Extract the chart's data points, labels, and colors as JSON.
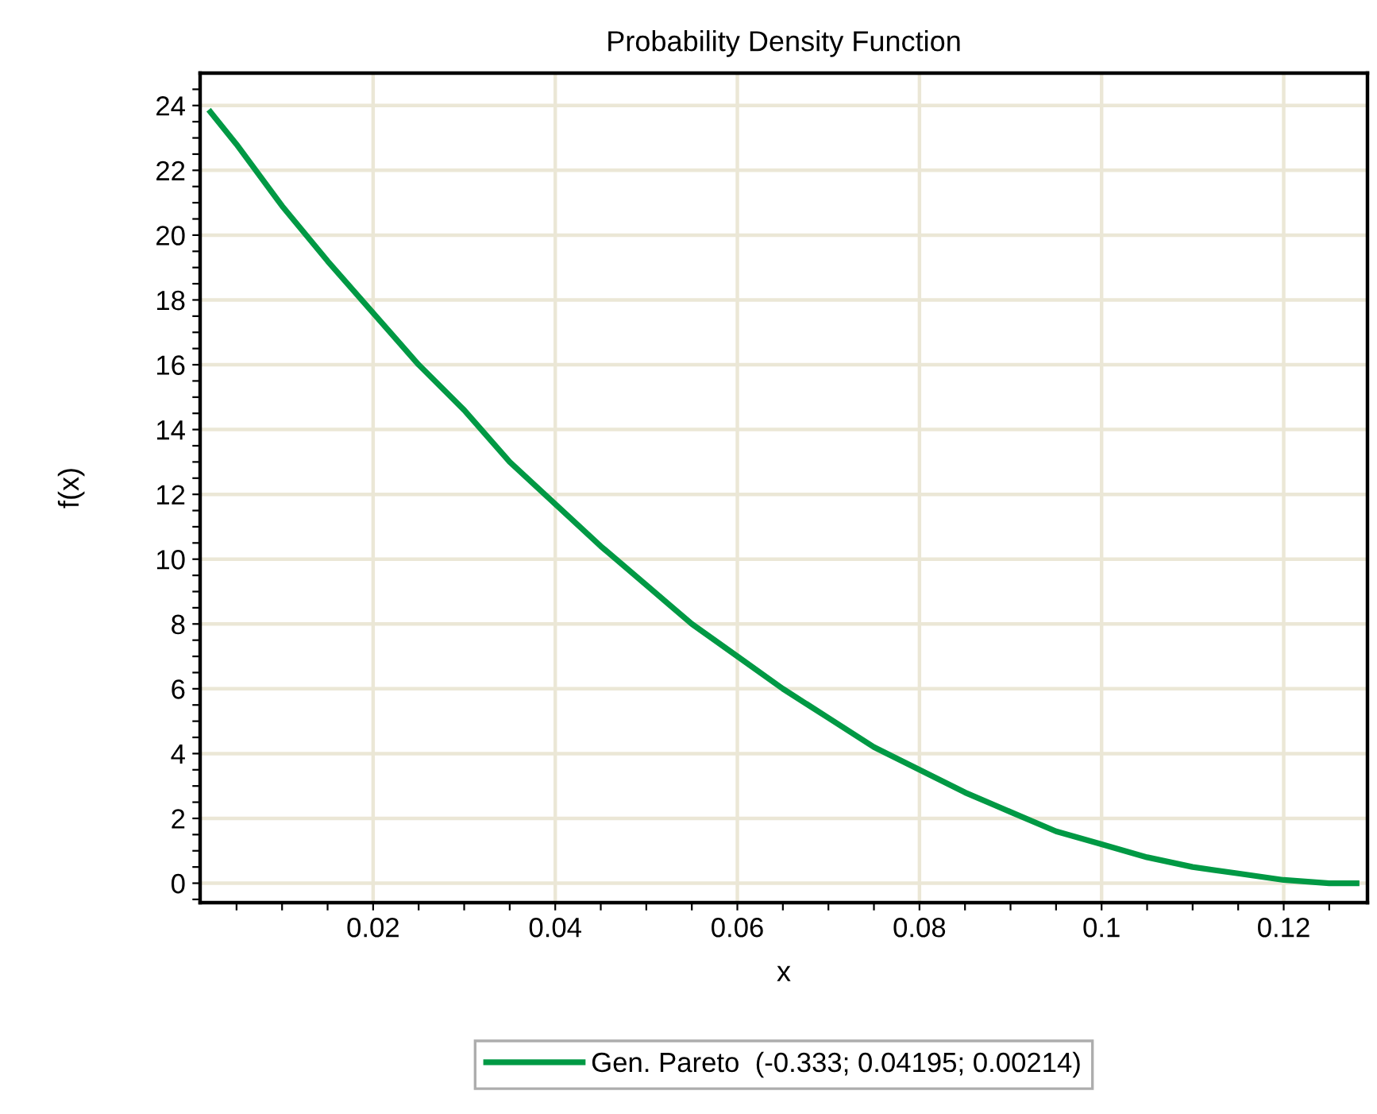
{
  "chart_data": {
    "type": "line",
    "title": "Probability Density Function",
    "xlabel": "x",
    "ylabel": "f(x)",
    "x": [
      0.00214,
      0.005,
      0.01,
      0.015,
      0.02,
      0.025,
      0.03,
      0.035,
      0.04,
      0.045,
      0.05,
      0.055,
      0.06,
      0.065,
      0.07,
      0.075,
      0.08,
      0.085,
      0.09,
      0.095,
      0.1,
      0.105,
      0.11,
      0.115,
      0.12,
      0.125,
      0.128
    ],
    "series": [
      {
        "name": "Gen. Pareto  (-0.333; 0.04195; 0.00214)",
        "color": "#009944",
        "values": [
          23.8,
          22.8,
          20.9,
          19.2,
          17.6,
          16.0,
          14.6,
          13.0,
          11.7,
          10.4,
          9.2,
          8.0,
          7.0,
          6.0,
          5.1,
          4.2,
          3.5,
          2.8,
          2.2,
          1.6,
          1.2,
          0.8,
          0.5,
          0.3,
          0.1,
          0.0,
          0.0
        ]
      }
    ],
    "xlim": [
      0.001,
      0.1292
    ],
    "ylim": [
      -0.6,
      25.0
    ],
    "xticks": [
      {
        "value": 0.005,
        "label": null
      },
      {
        "value": 0.01,
        "label": null
      },
      {
        "value": 0.015,
        "label": null
      },
      0.02,
      {
        "value": 0.025,
        "label": null
      },
      {
        "value": 0.03,
        "label": null
      },
      {
        "value": 0.035,
        "label": null
      },
      0.04,
      {
        "value": 0.045,
        "label": null
      },
      {
        "value": 0.05,
        "label": null
      },
      {
        "value": 0.055,
        "label": null
      },
      0.06,
      {
        "value": 0.065,
        "label": null
      },
      {
        "value": 0.07,
        "label": null
      },
      {
        "value": 0.075,
        "label": null
      },
      0.08,
      {
        "value": 0.085,
        "label": null
      },
      {
        "value": 0.09,
        "label": null
      },
      {
        "value": 0.095,
        "label": null
      },
      0.1,
      {
        "value": 0.105,
        "label": null
      },
      {
        "value": 0.11,
        "label": null
      },
      {
        "value": 0.115,
        "label": null
      },
      0.12,
      {
        "value": 0.125,
        "label": null
      }
    ],
    "yticks": [
      {
        "value": -0.5,
        "label": null
      },
      0,
      {
        "value": 0.5,
        "label": null
      },
      {
        "value": 1,
        "label": null
      },
      {
        "value": 1.5,
        "label": null
      },
      2,
      {
        "value": 2.5,
        "label": null
      },
      {
        "value": 3,
        "label": null
      },
      {
        "value": 3.5,
        "label": null
      },
      4,
      {
        "value": 4.5,
        "label": null
      },
      {
        "value": 5,
        "label": null
      },
      {
        "value": 5.5,
        "label": null
      },
      6,
      {
        "value": 6.5,
        "label": null
      },
      {
        "value": 7,
        "label": null
      },
      {
        "value": 7.5,
        "label": null
      },
      8,
      {
        "value": 8.5,
        "label": null
      },
      {
        "value": 9,
        "label": null
      },
      {
        "value": 9.5,
        "label": null
      },
      10,
      {
        "value": 10.5,
        "label": null
      },
      {
        "value": 11,
        "label": null
      },
      {
        "value": 11.5,
        "label": null
      },
      12,
      {
        "value": 12.5,
        "label": null
      },
      {
        "value": 13,
        "label": null
      },
      {
        "value": 13.5,
        "label": null
      },
      14,
      {
        "value": 14.5,
        "label": null
      },
      {
        "value": 15,
        "label": null
      },
      {
        "value": 15.5,
        "label": null
      },
      16,
      {
        "value": 16.5,
        "label": null
      },
      {
        "value": 17,
        "label": null
      },
      {
        "value": 17.5,
        "label": null
      },
      18,
      {
        "value": 18.5,
        "label": null
      },
      {
        "value": 19,
        "label": null
      },
      {
        "value": 19.5,
        "label": null
      },
      20,
      {
        "value": 20.5,
        "label": null
      },
      {
        "value": 21,
        "label": null
      },
      {
        "value": 21.5,
        "label": null
      },
      22,
      {
        "value": 22.5,
        "label": null
      },
      {
        "value": 23,
        "label": null
      },
      {
        "value": 23.5,
        "label": null
      },
      24,
      {
        "value": 24.5,
        "label": null
      }
    ],
    "grid": true,
    "legend": "bottom",
    "marker": "none",
    "line_style": "solid"
  }
}
